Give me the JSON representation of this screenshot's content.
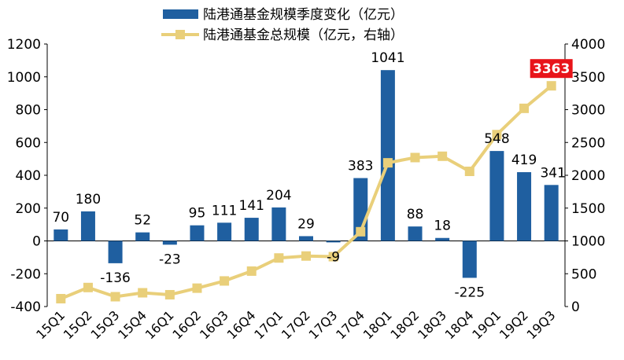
{
  "chart_data": {
    "type": "bar+line",
    "categories": [
      "15Q1",
      "15Q2",
      "15Q3",
      "15Q4",
      "16Q1",
      "16Q2",
      "16Q3",
      "16Q4",
      "17Q1",
      "17Q2",
      "17Q3",
      "17Q4",
      "18Q1",
      "18Q2",
      "18Q3",
      "18Q4",
      "19Q1",
      "19Q2",
      "19Q3"
    ],
    "series": [
      {
        "name": "陆港通基金规模季度变化（亿元）",
        "type": "bar",
        "axis": "left",
        "color": "#1f5fa0",
        "values": [
          70,
          180,
          -136,
          52,
          -23,
          95,
          111,
          141,
          204,
          29,
          -9,
          383,
          1041,
          88,
          18,
          -225,
          548,
          419,
          341
        ]
      },
      {
        "name": "陆港通基金总规模（亿元，右轴）",
        "type": "line",
        "axis": "right",
        "color": "#e9cf7a",
        "values": [
          120,
          290,
          150,
          210,
          180,
          280,
          390,
          540,
          740,
          770,
          760,
          1140,
          2190,
          2270,
          2290,
          2060,
          2620,
          3020,
          3363
        ]
      }
    ],
    "left_axis": {
      "min": -400,
      "max": 1200,
      "ticks": [
        -400,
        -200,
        0,
        200,
        400,
        600,
        800,
        1000,
        1200
      ]
    },
    "right_axis": {
      "min": 0,
      "max": 4000,
      "ticks": [
        0,
        500,
        1000,
        1500,
        2000,
        2500,
        3000,
        3500,
        4000
      ]
    },
    "highlight_label": {
      "text": "3363",
      "color": "#e8141a"
    },
    "legend_placement": "top-center",
    "grid": false
  }
}
